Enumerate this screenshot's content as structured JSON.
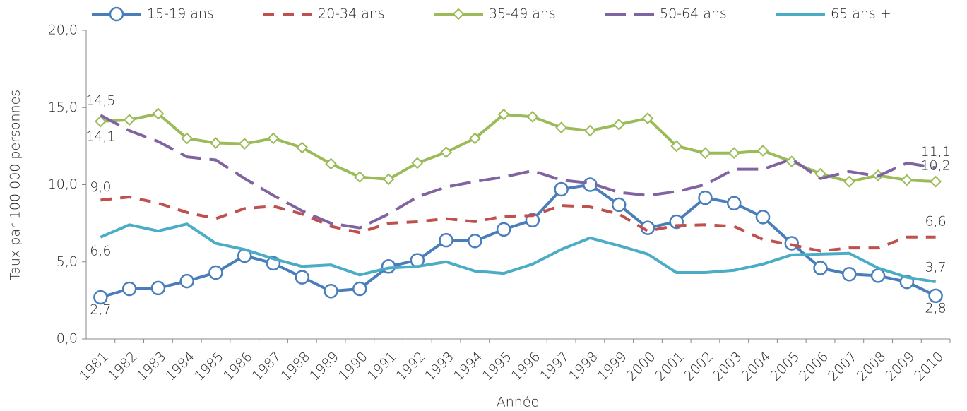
{
  "chart_data": {
    "type": "line",
    "y_label": "Taux par 100 000 personnes",
    "x_label": "Année",
    "categories": [
      "1981",
      "1982",
      "1983",
      "1984",
      "1985",
      "1986",
      "1987",
      "1988",
      "1989",
      "1990",
      "1991",
      "1992",
      "1993",
      "1994",
      "1995",
      "1996",
      "1997",
      "1998",
      "1999",
      "2000",
      "2001",
      "2002",
      "2003",
      "2004",
      "2005",
      "2006",
      "2007",
      "2008",
      "2009",
      "2010"
    ],
    "ylim": [
      0,
      20
    ],
    "yticks": [
      {
        "value": 0,
        "label": "0,0"
      },
      {
        "value": 5,
        "label": "5,0"
      },
      {
        "value": 10,
        "label": "10,0"
      },
      {
        "value": 15,
        "label": "15,0"
      },
      {
        "value": 20,
        "label": "20,0"
      }
    ],
    "legend": "top",
    "series": [
      {
        "name": "15-19 ans",
        "color": "#4a7ebb",
        "marker": "circle",
        "dash": "solid",
        "values": [
          2.7,
          3.25,
          3.3,
          3.75,
          4.3,
          5.4,
          4.9,
          4.0,
          3.1,
          3.25,
          4.7,
          5.1,
          6.4,
          6.35,
          7.1,
          7.7,
          9.7,
          10.0,
          8.7,
          7.2,
          7.6,
          9.15,
          8.8,
          7.9,
          6.2,
          4.6,
          4.2,
          4.1,
          3.7,
          2.8
        ],
        "value_labels": [
          "2,7",
          null,
          null,
          null,
          null,
          null,
          null,
          null,
          null,
          null,
          null,
          null,
          null,
          null,
          null,
          null,
          null,
          null,
          null,
          null,
          null,
          null,
          null,
          null,
          null,
          null,
          null,
          null,
          null,
          "2,8"
        ]
      },
      {
        "name": "20-34 ans",
        "color": "#c0504d",
        "marker": "none",
        "dash": "dashed",
        "values": [
          9.0,
          9.2,
          8.8,
          8.2,
          7.8,
          8.45,
          8.6,
          8.1,
          7.3,
          6.9,
          7.5,
          7.6,
          7.8,
          7.6,
          7.95,
          8.0,
          8.65,
          8.55,
          8.1,
          7.0,
          7.35,
          7.4,
          7.3,
          6.45,
          6.1,
          5.7,
          5.9,
          5.9,
          6.6,
          6.6
        ],
        "value_labels": [
          "9,0",
          null,
          null,
          null,
          null,
          null,
          null,
          null,
          null,
          null,
          null,
          null,
          null,
          null,
          null,
          null,
          null,
          null,
          null,
          null,
          null,
          null,
          null,
          null,
          null,
          null,
          null,
          null,
          null,
          "6,6"
        ]
      },
      {
        "name": "35-49 ans",
        "color": "#9bbb59",
        "marker": "diamond",
        "dash": "solid",
        "values": [
          14.1,
          14.2,
          14.6,
          13.0,
          12.7,
          12.65,
          13.0,
          12.4,
          11.35,
          10.5,
          10.35,
          11.4,
          12.1,
          13.0,
          14.55,
          14.4,
          13.7,
          13.5,
          13.9,
          14.3,
          12.5,
          12.05,
          12.05,
          12.2,
          11.5,
          10.7,
          10.2,
          10.6,
          10.3,
          10.2
        ],
        "value_labels": [
          "14,1",
          null,
          null,
          null,
          null,
          null,
          null,
          null,
          null,
          null,
          null,
          null,
          null,
          null,
          null,
          null,
          null,
          null,
          null,
          null,
          null,
          null,
          null,
          null,
          null,
          null,
          null,
          null,
          null,
          "10,2"
        ]
      },
      {
        "name": "50-64 ans",
        "color": "#8064a2",
        "marker": "none",
        "dash": "longdash",
        "values": [
          14.5,
          13.5,
          12.8,
          11.8,
          11.6,
          10.4,
          9.3,
          8.3,
          7.5,
          7.2,
          8.1,
          9.2,
          9.85,
          10.2,
          10.5,
          10.9,
          10.3,
          10.1,
          9.5,
          9.3,
          9.55,
          10.0,
          11.0,
          11.0,
          11.65,
          10.4,
          10.85,
          10.55,
          11.4,
          11.1
        ],
        "value_labels": [
          "14,5",
          null,
          null,
          null,
          null,
          null,
          null,
          null,
          null,
          null,
          null,
          null,
          null,
          null,
          null,
          null,
          null,
          null,
          null,
          null,
          null,
          null,
          null,
          null,
          null,
          null,
          null,
          null,
          null,
          "11,1"
        ]
      },
      {
        "name": "65 ans +",
        "color": "#4bacc6",
        "marker": "none",
        "dash": "solid",
        "values": [
          6.6,
          7.4,
          7.0,
          7.45,
          6.2,
          5.8,
          5.2,
          4.7,
          4.8,
          4.15,
          4.6,
          4.7,
          5.0,
          4.4,
          4.25,
          4.85,
          5.8,
          6.55,
          6.05,
          5.5,
          4.3,
          4.3,
          4.45,
          4.85,
          5.45,
          5.5,
          5.55,
          4.6,
          4.0,
          3.7
        ],
        "value_labels": [
          "6,6",
          null,
          null,
          null,
          null,
          null,
          null,
          null,
          null,
          null,
          null,
          null,
          null,
          null,
          null,
          null,
          null,
          null,
          null,
          null,
          null,
          null,
          null,
          null,
          null,
          null,
          null,
          null,
          null,
          "3,7"
        ]
      }
    ]
  }
}
